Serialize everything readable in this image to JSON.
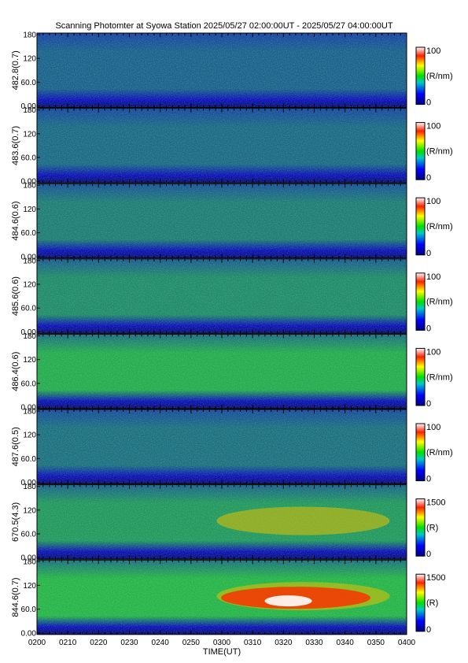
{
  "title": "Scanning Photomter at Syowa Station 2025/05/27 02:00:00UT - 2025/05/27 04:00:00UT",
  "colors": {
    "background": "#ffffff",
    "low": "#0a14b4",
    "mid": "#2fd040",
    "high": "#ff1e00",
    "saturated": "#ffffff"
  },
  "chart_data": {
    "type": "heatmap",
    "xlabel": "TIME(UT)",
    "x_ticks": [
      "0200",
      "0210",
      "0220",
      "0230",
      "0240",
      "0250",
      "0300",
      "0310",
      "0320",
      "0330",
      "0340",
      "0350",
      "0400"
    ],
    "y_ticks": [
      "0.00",
      "60.0",
      "120",
      "180"
    ],
    "ylim": [
      0,
      180
    ],
    "panels": [
      {
        "ylabel": "482.8(0.7)",
        "colorbar": {
          "max": "100",
          "min": "0",
          "unit": "(R/nm)"
        },
        "level": 0.25
      },
      {
        "ylabel": "483.6(0.7)",
        "colorbar": {
          "max": "100",
          "min": "0",
          "unit": "(R/nm)"
        },
        "level": 0.28
      },
      {
        "ylabel": "484.6(0.6)",
        "colorbar": {
          "max": "100",
          "min": "0",
          "unit": "(R/nm)"
        },
        "level": 0.35
      },
      {
        "ylabel": "485.6(0.6)",
        "colorbar": {
          "max": "100",
          "min": "0",
          "unit": "(R/nm)"
        },
        "level": 0.4
      },
      {
        "ylabel": "486.4(0.6)",
        "colorbar": {
          "max": "100",
          "min": "0",
          "unit": "(R/nm)"
        },
        "level": 0.52
      },
      {
        "ylabel": "487.6(0.5)",
        "colorbar": {
          "max": "100",
          "min": "0",
          "unit": "(R/nm)"
        },
        "level": 0.3
      },
      {
        "ylabel": "670.5(4.3)",
        "colorbar": {
          "max": "1500",
          "min": "0",
          "unit": "(R)"
        },
        "level": 0.45
      },
      {
        "ylabel": "844.6(0.7)",
        "colorbar": {
          "max": "1500",
          "min": "0",
          "unit": "(R)"
        },
        "level": 0.55
      }
    ]
  }
}
